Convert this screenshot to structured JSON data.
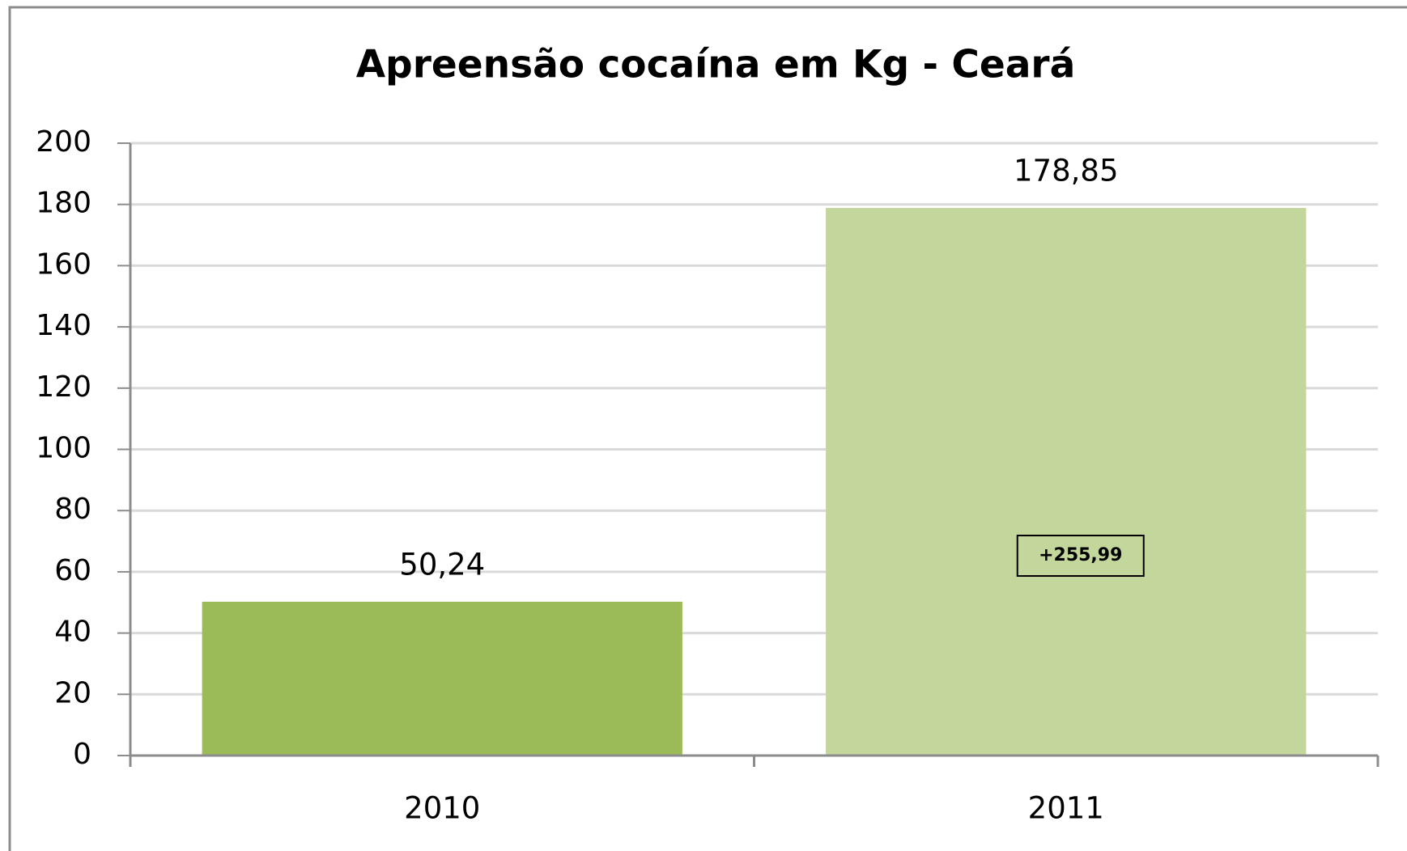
{
  "chart_data": {
    "type": "bar",
    "title": "Apreensão cocaína em Kg - Ceará",
    "categories": [
      "2010",
      "2011"
    ],
    "values": [
      50.24,
      178.85
    ],
    "value_labels": [
      "50,24",
      "178,85"
    ],
    "colors": [
      "#9bbb59",
      "#c3d69b"
    ],
    "ylim": [
      0,
      200
    ],
    "yticks": [
      0,
      20,
      40,
      60,
      80,
      100,
      120,
      140,
      160,
      180,
      200
    ],
    "grid": true,
    "annotations": [
      {
        "text": "+255,99"
      }
    ]
  }
}
